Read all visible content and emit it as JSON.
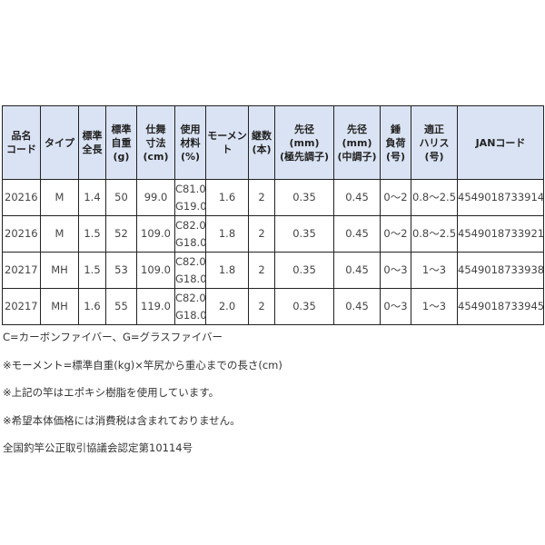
{
  "table": {
    "headers": [
      "品名\nコード",
      "タイプ",
      "標準\n全長",
      "標準\n自重\n(g)",
      "仕舞\n寸法\n(cm)",
      "使用\n材料\n(%)",
      "モーメント",
      "継数\n(本)",
      "先径\n(mm)\n(極先調子)",
      "先径\n(mm)\n(中調子)",
      "錘\n負荷\n(号)",
      "適正\nハリス\n(号)",
      "JANコード"
    ],
    "rows": [
      [
        "20216",
        "M",
        "1.4",
        "50",
        "99.0",
        "C81.0\nG19.0",
        "1.6",
        "2",
        "0.35",
        "0.45",
        "0〜2",
        "0.8〜2.5",
        "4549018733914"
      ],
      [
        "20216",
        "M",
        "1.5",
        "52",
        "109.0",
        "C82.0\nG18.0",
        "1.8",
        "2",
        "0.35",
        "0.45",
        "0〜2",
        "0.8〜2.5",
        "4549018733921"
      ],
      [
        "20217",
        "MH",
        "1.5",
        "53",
        "109.0",
        "C82.0\nG18.0",
        "1.8",
        "2",
        "0.35",
        "0.45",
        "0〜3",
        "1〜3",
        "4549018733938"
      ],
      [
        "20217",
        "MH",
        "1.6",
        "55",
        "119.0",
        "C82.0\nG18.0",
        "2.0",
        "2",
        "0.35",
        "0.45",
        "0〜3",
        "1〜3",
        "4549018733945"
      ]
    ]
  },
  "notes": [
    "C=カーボンファイバー、G=グラスファイバー",
    "※モーメント=標準自重(kg)×竿尻から重心までの長さ(cm)",
    "※上記の竿はエポキシ樹脂を使用しています。",
    "※希望本体価格には消費税は含まれておりません。",
    "全国釣竿公正取引協議会認定第10114号"
  ],
  "colors": {
    "header_bg": "#dae3f3"
  }
}
